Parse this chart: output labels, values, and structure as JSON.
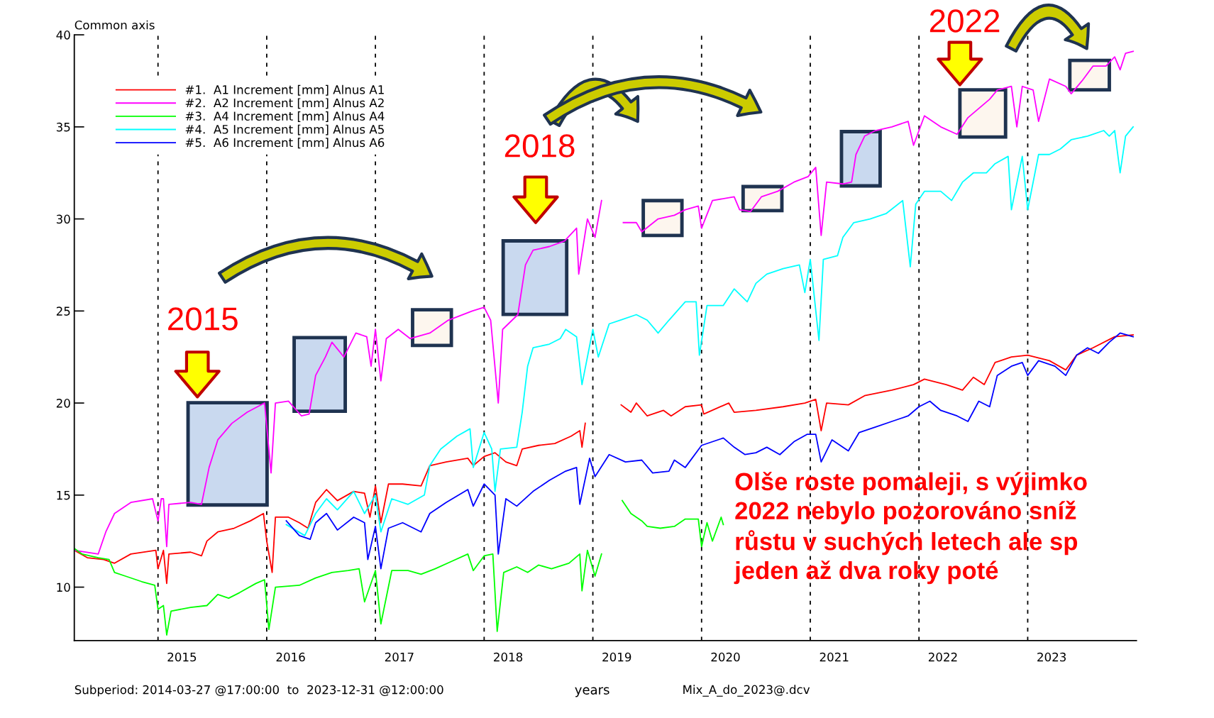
{
  "chart_data": {
    "type": "line",
    "ylabel": "Common axis",
    "xlabel": "years",
    "xlim": [
      2014.23,
      2024.0
    ],
    "ylim": [
      7.1,
      40
    ],
    "xticks": [
      {
        "value": 2015.22,
        "label": "2015"
      },
      {
        "value": 2016.22,
        "label": "2016"
      },
      {
        "value": 2017.22,
        "label": "2017"
      },
      {
        "value": 2018.22,
        "label": "2018"
      },
      {
        "value": 2019.22,
        "label": "2019"
      },
      {
        "value": 2020.22,
        "label": "2020"
      },
      {
        "value": 2021.22,
        "label": "2021"
      },
      {
        "value": 2022.22,
        "label": "2022"
      },
      {
        "value": 2023.22,
        "label": "2023"
      }
    ],
    "yticks": [
      10,
      15,
      20,
      25,
      30,
      35,
      40
    ],
    "legend": "top left",
    "ref_lines": [
      {
        "axis": "x",
        "value": 2015,
        "color": "#000000",
        "line_style": "dashed"
      },
      {
        "axis": "x",
        "value": 2016,
        "color": "#000000",
        "line_style": "dashed"
      },
      {
        "axis": "x",
        "value": 2017,
        "color": "#000000",
        "line_style": "dashed"
      },
      {
        "axis": "x",
        "value": 2018,
        "color": "#000000",
        "line_style": "dashed"
      },
      {
        "axis": "x",
        "value": 2019,
        "color": "#000000",
        "line_style": "dashed"
      },
      {
        "axis": "x",
        "value": 2020,
        "color": "#000000",
        "line_style": "dashed"
      },
      {
        "axis": "x",
        "value": 2021,
        "color": "#000000",
        "line_style": "dashed"
      },
      {
        "axis": "x",
        "value": 2022,
        "color": "#000000",
        "line_style": "dashed"
      },
      {
        "axis": "x",
        "value": 2023,
        "color": "#000000",
        "line_style": "dashed"
      }
    ],
    "annotations": [
      "2015",
      "2018",
      "2022",
      "Olše roste pomaleji, s výjimko\n2022 nebylo pozorováno sníž\nrůstu v suchých letech ale sp\njeden až dva roky poté",
      "Subperiod: 2014-03-27 @17:00:00  to  2023-12-31 @12:00:00",
      "Mix_A_do_2023@.dcv"
    ],
    "series": [
      {
        "name": "#1.  A1 Increment [mm] Alnus A1",
        "color": "#ff0000",
        "x": [
          2014.23,
          2014.35,
          2014.5,
          2014.6,
          2014.75,
          2014.98,
          2015.0,
          2015.05,
          2015.08,
          2015.1,
          2015.3,
          2015.4,
          2015.45,
          2015.55,
          2015.7,
          2015.85,
          2015.97,
          2016.0,
          2016.05,
          2016.08,
          2016.2,
          2016.3,
          2016.38,
          2016.45,
          2016.55,
          2016.65,
          2016.8,
          2016.9,
          2016.95,
          2017.0,
          2017.05,
          2017.12,
          2017.25,
          2017.42,
          2017.5,
          2017.65,
          2017.85,
          2017.9,
          2018.0,
          2018.1,
          2018.2,
          2018.3,
          2018.35,
          2018.5,
          2018.65,
          2018.8,
          2018.88,
          2018.9,
          2018.93,
          2019.1,
          2019.26,
          2019.35,
          2019.4,
          2019.5,
          2019.65,
          2019.72,
          2019.85,
          2020.0,
          2020.02,
          2020.25,
          2020.3,
          2020.5,
          2020.75,
          2020.95,
          2021.05,
          2021.1,
          2021.15,
          2021.35,
          2021.5,
          2021.75,
          2021.95,
          2022.05,
          2022.25,
          2022.4,
          2022.5,
          2022.6,
          2022.7,
          2022.85,
          2023.0,
          2023.2,
          2023.35,
          2023.45,
          2023.6,
          2023.8,
          2023.97
        ],
        "values": [
          12.0,
          11.6,
          11.5,
          11.3,
          11.8,
          12.0,
          11.0,
          12.0,
          10.2,
          11.8,
          11.9,
          11.7,
          12.5,
          13.0,
          13.2,
          13.6,
          14.0,
          12.5,
          10.8,
          13.8,
          13.8,
          13.5,
          13.2,
          14.6,
          15.3,
          14.7,
          15.2,
          15.1,
          13.8,
          15.5,
          13.5,
          15.6,
          15.6,
          15.5,
          16.6,
          16.8,
          17.0,
          16.6,
          17.1,
          17.3,
          16.8,
          16.6,
          17.5,
          17.7,
          17.8,
          18.2,
          18.5,
          17.6,
          18.9,
          null,
          19.9,
          19.5,
          20.0,
          19.3,
          19.6,
          19.3,
          19.8,
          19.9,
          19.4,
          20.0,
          19.5,
          19.6,
          19.8,
          20.0,
          20.2,
          18.5,
          20.0,
          19.9,
          20.4,
          20.7,
          21.0,
          21.3,
          21.0,
          20.7,
          21.4,
          21.0,
          22.2,
          22.5,
          22.6,
          22.3,
          21.8,
          22.6,
          23.0,
          23.6,
          23.7
        ]
      },
      {
        "name": "#2.  A2 Increment [mm] Alnus A2",
        "color": "#ff00ff",
        "x": [
          2014.23,
          2014.45,
          2014.52,
          2014.6,
          2014.75,
          2014.95,
          2015.0,
          2015.03,
          2015.05,
          2015.08,
          2015.1,
          2015.3,
          2015.4,
          2015.47,
          2015.55,
          2015.68,
          2015.82,
          2015.98,
          2016.04,
          2016.08,
          2016.2,
          2016.32,
          2016.39,
          2016.45,
          2016.54,
          2016.6,
          2016.71,
          2016.82,
          2016.92,
          2016.96,
          2017.0,
          2017.05,
          2017.1,
          2017.21,
          2017.32,
          2017.5,
          2017.67,
          2017.89,
          2018.0,
          2018.06,
          2018.13,
          2018.17,
          2018.31,
          2018.38,
          2018.45,
          2018.6,
          2018.74,
          2018.85,
          2018.87,
          2018.95,
          2019.02,
          2019.08,
          2019.18,
          2019.28,
          2019.4,
          2019.45,
          2019.6,
          2019.75,
          2019.85,
          2019.97,
          2020.0,
          2020.1,
          2020.3,
          2020.35,
          2020.45,
          2020.55,
          2020.7,
          2020.85,
          2020.98,
          2021.05,
          2021.1,
          2021.15,
          2021.3,
          2021.38,
          2021.42,
          2021.5,
          2021.6,
          2021.75,
          2021.9,
          2021.95,
          2022.05,
          2022.2,
          2022.35,
          2022.45,
          2022.55,
          2022.65,
          2022.72,
          2022.85,
          2022.9,
          2022.95,
          2023.05,
          2023.1,
          2023.2,
          2023.35,
          2023.4,
          2023.5,
          2023.6,
          2023.72,
          2023.8,
          2023.85,
          2023.9,
          2023.97
        ],
        "values": [
          12.0,
          11.8,
          13.0,
          14.0,
          14.6,
          14.8,
          13.6,
          14.8,
          14.8,
          12.2,
          14.5,
          14.6,
          14.5,
          16.5,
          18.0,
          18.9,
          19.5,
          20.0,
          16.2,
          20.0,
          20.1,
          19.3,
          19.4,
          21.5,
          22.5,
          23.3,
          22.5,
          23.8,
          23.6,
          22.0,
          24.0,
          21.2,
          23.5,
          24.0,
          23.5,
          23.8,
          24.5,
          25.0,
          25.2,
          24.5,
          20.0,
          24.0,
          24.8,
          27.5,
          28.3,
          28.5,
          28.8,
          29.5,
          27.0,
          30.0,
          29.0,
          31.0,
          null,
          29.8,
          29.8,
          29.3,
          30.0,
          30.2,
          30.5,
          30.7,
          29.5,
          31.0,
          31.2,
          30.5,
          30.4,
          31.2,
          31.5,
          32.0,
          32.3,
          32.8,
          29.1,
          32.0,
          31.9,
          32.0,
          33.5,
          34.5,
          34.8,
          35.0,
          35.3,
          34.0,
          35.6,
          35.0,
          34.6,
          35.5,
          36.0,
          36.5,
          37.0,
          37.2,
          35.0,
          37.2,
          37.0,
          35.3,
          37.6,
          37.2,
          36.8,
          37.5,
          38.3,
          38.3,
          38.8,
          38.1,
          39.0,
          39.1
        ]
      },
      {
        "name": "#3.  A4 Increment [mm] Alnus A4",
        "color": "#00ff00",
        "x": [
          2014.23,
          2014.3,
          2014.45,
          2014.55,
          2014.6,
          2014.7,
          2014.85,
          2014.97,
          2015.0,
          2015.05,
          2015.08,
          2015.12,
          2015.3,
          2015.45,
          2015.55,
          2015.65,
          2015.75,
          2015.9,
          2015.98,
          2016.02,
          2016.08,
          2016.3,
          2016.45,
          2016.6,
          2016.75,
          2016.85,
          2016.9,
          2017.0,
          2017.05,
          2017.15,
          2017.3,
          2017.42,
          2017.55,
          2017.7,
          2017.85,
          2017.9,
          2018.0,
          2018.08,
          2018.12,
          2018.18,
          2018.3,
          2018.4,
          2018.5,
          2018.62,
          2018.78,
          2018.88,
          2018.9,
          2018.95,
          2019.02,
          2019.08,
          2019.18,
          2019.27,
          2019.35,
          2019.45,
          2019.5,
          2019.62,
          2019.75,
          2019.85,
          2019.97,
          2020.0,
          2020.05,
          2020.1,
          2020.18,
          2020.2
        ],
        "values": [
          12.1,
          11.8,
          11.6,
          11.5,
          10.8,
          10.6,
          10.3,
          10.1,
          8.8,
          9.0,
          7.4,
          8.7,
          8.9,
          9.0,
          9.6,
          9.4,
          9.7,
          10.2,
          10.4,
          7.7,
          10.0,
          10.1,
          10.5,
          10.8,
          10.9,
          11.0,
          9.2,
          10.9,
          8.0,
          10.9,
          10.9,
          10.7,
          11.0,
          11.4,
          11.8,
          10.9,
          11.7,
          11.8,
          7.6,
          10.8,
          11.1,
          10.8,
          11.2,
          11.0,
          11.3,
          11.8,
          9.8,
          12.0,
          10.6,
          11.8,
          null,
          14.7,
          14.0,
          13.6,
          13.3,
          13.2,
          13.3,
          13.7,
          13.7,
          12.2,
          13.5,
          12.5,
          13.8,
          13.4
        ]
      },
      {
        "name": "#4.  A5 Increment [mm] Alnus A5",
        "color": "#00ffff",
        "x": [
          2016.18,
          2016.35,
          2016.45,
          2016.55,
          2016.65,
          2016.8,
          2016.9,
          2017.0,
          2017.05,
          2017.15,
          2017.3,
          2017.45,
          2017.5,
          2017.6,
          2017.75,
          2017.87,
          2017.9,
          2018.0,
          2018.07,
          2018.1,
          2018.15,
          2018.3,
          2018.35,
          2018.4,
          2018.45,
          2018.6,
          2018.7,
          2018.75,
          2018.85,
          2018.9,
          2019.0,
          2019.05,
          2019.15,
          2019.25,
          2019.4,
          2019.5,
          2019.6,
          2019.7,
          2019.85,
          2019.95,
          2019.98,
          2020.05,
          2020.2,
          2020.3,
          2020.42,
          2020.5,
          2020.6,
          2020.75,
          2020.9,
          2020.95,
          2021.0,
          2021.08,
          2021.12,
          2021.25,
          2021.3,
          2021.4,
          2021.55,
          2021.7,
          2021.85,
          2021.92,
          2021.97,
          2022.05,
          2022.2,
          2022.3,
          2022.4,
          2022.5,
          2022.62,
          2022.7,
          2022.82,
          2022.85,
          2022.95,
          2023.0,
          2023.1,
          2023.2,
          2023.3,
          2023.4,
          2023.55,
          2023.7,
          2023.75,
          2023.8,
          2023.85,
          2023.9,
          2023.97
        ],
        "values": [
          13.4,
          12.8,
          14.0,
          14.8,
          14.2,
          15.2,
          14.0,
          15.0,
          13.0,
          14.8,
          14.5,
          15.0,
          16.6,
          17.5,
          18.2,
          18.6,
          16.5,
          18.4,
          17.5,
          15.2,
          17.5,
          17.6,
          19.5,
          22.0,
          23.0,
          23.2,
          23.5,
          24.0,
          23.6,
          21.0,
          24.0,
          22.5,
          24.3,
          24.5,
          24.8,
          24.5,
          23.8,
          24.5,
          25.5,
          25.5,
          22.6,
          25.3,
          25.3,
          26.2,
          25.5,
          26.5,
          27.0,
          27.3,
          27.5,
          26.0,
          27.8,
          23.4,
          27.8,
          28.0,
          29.0,
          29.8,
          30.0,
          30.3,
          31.0,
          27.4,
          30.8,
          31.5,
          31.5,
          31.0,
          32.0,
          32.5,
          32.5,
          33.0,
          33.4,
          30.5,
          33.4,
          30.5,
          33.5,
          33.5,
          33.8,
          34.3,
          34.5,
          34.8,
          34.5,
          34.8,
          32.5,
          34.5,
          35.0
        ]
      },
      {
        "name": "#5.  A6 Increment [mm] Alnus A6",
        "color": "#0000ff",
        "x": [
          2016.18,
          2016.3,
          2016.4,
          2016.45,
          2016.55,
          2016.65,
          2016.8,
          2016.9,
          2016.93,
          2017.0,
          2017.05,
          2017.12,
          2017.25,
          2017.42,
          2017.5,
          2017.65,
          2017.85,
          2017.9,
          2018.0,
          2018.1,
          2018.13,
          2018.2,
          2018.3,
          2018.45,
          2018.6,
          2018.75,
          2018.85,
          2018.88,
          2018.97,
          2019.02,
          2019.15,
          2019.3,
          2019.45,
          2019.55,
          2019.7,
          2019.75,
          2019.85,
          2020.0,
          2020.2,
          2020.3,
          2020.4,
          2020.5,
          2020.6,
          2020.72,
          2020.85,
          2020.97,
          2021.05,
          2021.1,
          2021.2,
          2021.35,
          2021.45,
          2021.6,
          2021.75,
          2021.9,
          2022.0,
          2022.1,
          2022.2,
          2022.35,
          2022.45,
          2022.55,
          2022.65,
          2022.72,
          2022.85,
          2022.95,
          2023.0,
          2023.1,
          2023.25,
          2023.35,
          2023.45,
          2023.55,
          2023.65,
          2023.75,
          2023.85,
          2023.97
        ],
        "values": [
          13.6,
          12.8,
          12.6,
          13.5,
          14.0,
          13.1,
          13.8,
          13.5,
          11.5,
          13.3,
          11.0,
          13.2,
          13.5,
          13.0,
          14.0,
          14.6,
          15.3,
          14.4,
          15.6,
          15.0,
          11.8,
          14.8,
          14.4,
          15.2,
          15.8,
          16.3,
          16.5,
          14.5,
          17.0,
          16.0,
          17.2,
          16.8,
          16.9,
          16.2,
          16.3,
          16.9,
          16.5,
          17.7,
          18.1,
          17.6,
          17.2,
          17.3,
          17.6,
          17.2,
          17.9,
          18.3,
          18.3,
          16.8,
          18.0,
          17.4,
          18.4,
          18.7,
          19.0,
          19.3,
          19.8,
          20.1,
          19.6,
          19.3,
          19.0,
          20.1,
          19.8,
          21.5,
          22.0,
          22.2,
          21.5,
          22.3,
          22.0,
          21.5,
          22.6,
          23.0,
          22.7,
          23.3,
          23.8,
          23.6
        ]
      }
    ]
  }
}
